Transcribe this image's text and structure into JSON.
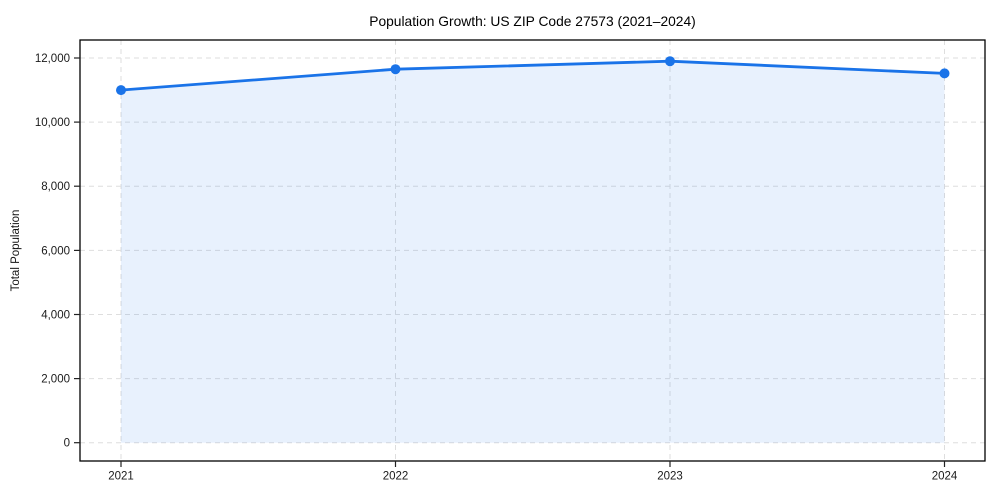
{
  "chart_data": {
    "type": "area",
    "title": "Population Growth: US ZIP Code 27573 (2021–2024)",
    "xlabel": "",
    "ylabel": "Total Population",
    "categories": [
      "2021",
      "2022",
      "2023",
      "2024"
    ],
    "values": [
      11000,
      11650,
      11900,
      11520
    ],
    "yticks": [
      0,
      2000,
      4000,
      6000,
      8000,
      10000,
      12000
    ],
    "ytick_labels": [
      "0",
      "2,000",
      "4,000",
      "6,000",
      "8,000",
      "10,000",
      "12,000"
    ],
    "ylim": [
      0,
      12000
    ],
    "grid": true,
    "legend": false,
    "marker": "circle",
    "colors": {
      "line": "#1a73e8",
      "fill_opacity": "0.10",
      "grid": "#dedede",
      "spine": "#000000",
      "tick": "#222222",
      "text": "#1a1a1a",
      "background": "#ffffff"
    }
  }
}
